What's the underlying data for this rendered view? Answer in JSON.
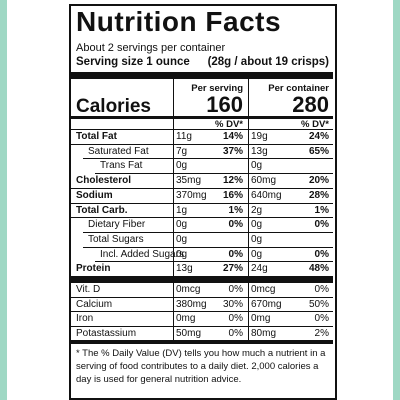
{
  "header": {
    "title": "Nutrition Facts",
    "servings": "About 2 servings per container",
    "serving_size_label": "Serving size 1 ounce",
    "serving_size_value": "(28g / about 19 crisps)"
  },
  "columns": {
    "per_serving": "Per serving",
    "per_container": "Per container",
    "dv": "% DV*"
  },
  "calories": {
    "label": "Calories",
    "per_serving": "160",
    "per_container": "280"
  },
  "nutrients": [
    [
      "Total Fat",
      "11g",
      "14%",
      "19g",
      "24%"
    ],
    [
      "Saturated Fat",
      "7g",
      "37%",
      "13g",
      "65%"
    ],
    [
      "Trans Fat",
      "0g",
      null,
      "0g",
      null
    ],
    [
      "Cholesterol",
      "35mg",
      "12%",
      "60mg",
      "20%"
    ],
    [
      "Sodium",
      "370mg",
      "16%",
      "640mg",
      "28%"
    ],
    [
      "Total Carb.",
      "1g",
      "1%",
      "2g",
      "1%"
    ],
    [
      "Dietary Fiber",
      "0g",
      "0%",
      "0g",
      "0%"
    ],
    [
      "Total Sugars",
      "0g",
      null,
      "0g",
      null
    ],
    [
      "Incl. Added Sugars",
      "0g",
      "0%",
      "0g",
      "0%"
    ],
    [
      "Protein",
      "13g",
      "27%",
      "24g",
      "48%"
    ]
  ],
  "vitamins": [
    [
      "Vit. D",
      "0mcg",
      "0%",
      "0mcg",
      "0%"
    ],
    [
      "Calcium",
      "380mg",
      "30%",
      "670mg",
      "50%"
    ],
    [
      "Iron",
      "0mg",
      "0%",
      "0mg",
      "0%"
    ],
    [
      "Potastassium",
      "50mg",
      "0%",
      "80mg",
      "2%"
    ]
  ],
  "footnote": "* The % Daily Value (DV) tells you how much a nutrient in a serving of food contributes to a daily diet. 2,000 calories a day is used for general nutrition advice."
}
